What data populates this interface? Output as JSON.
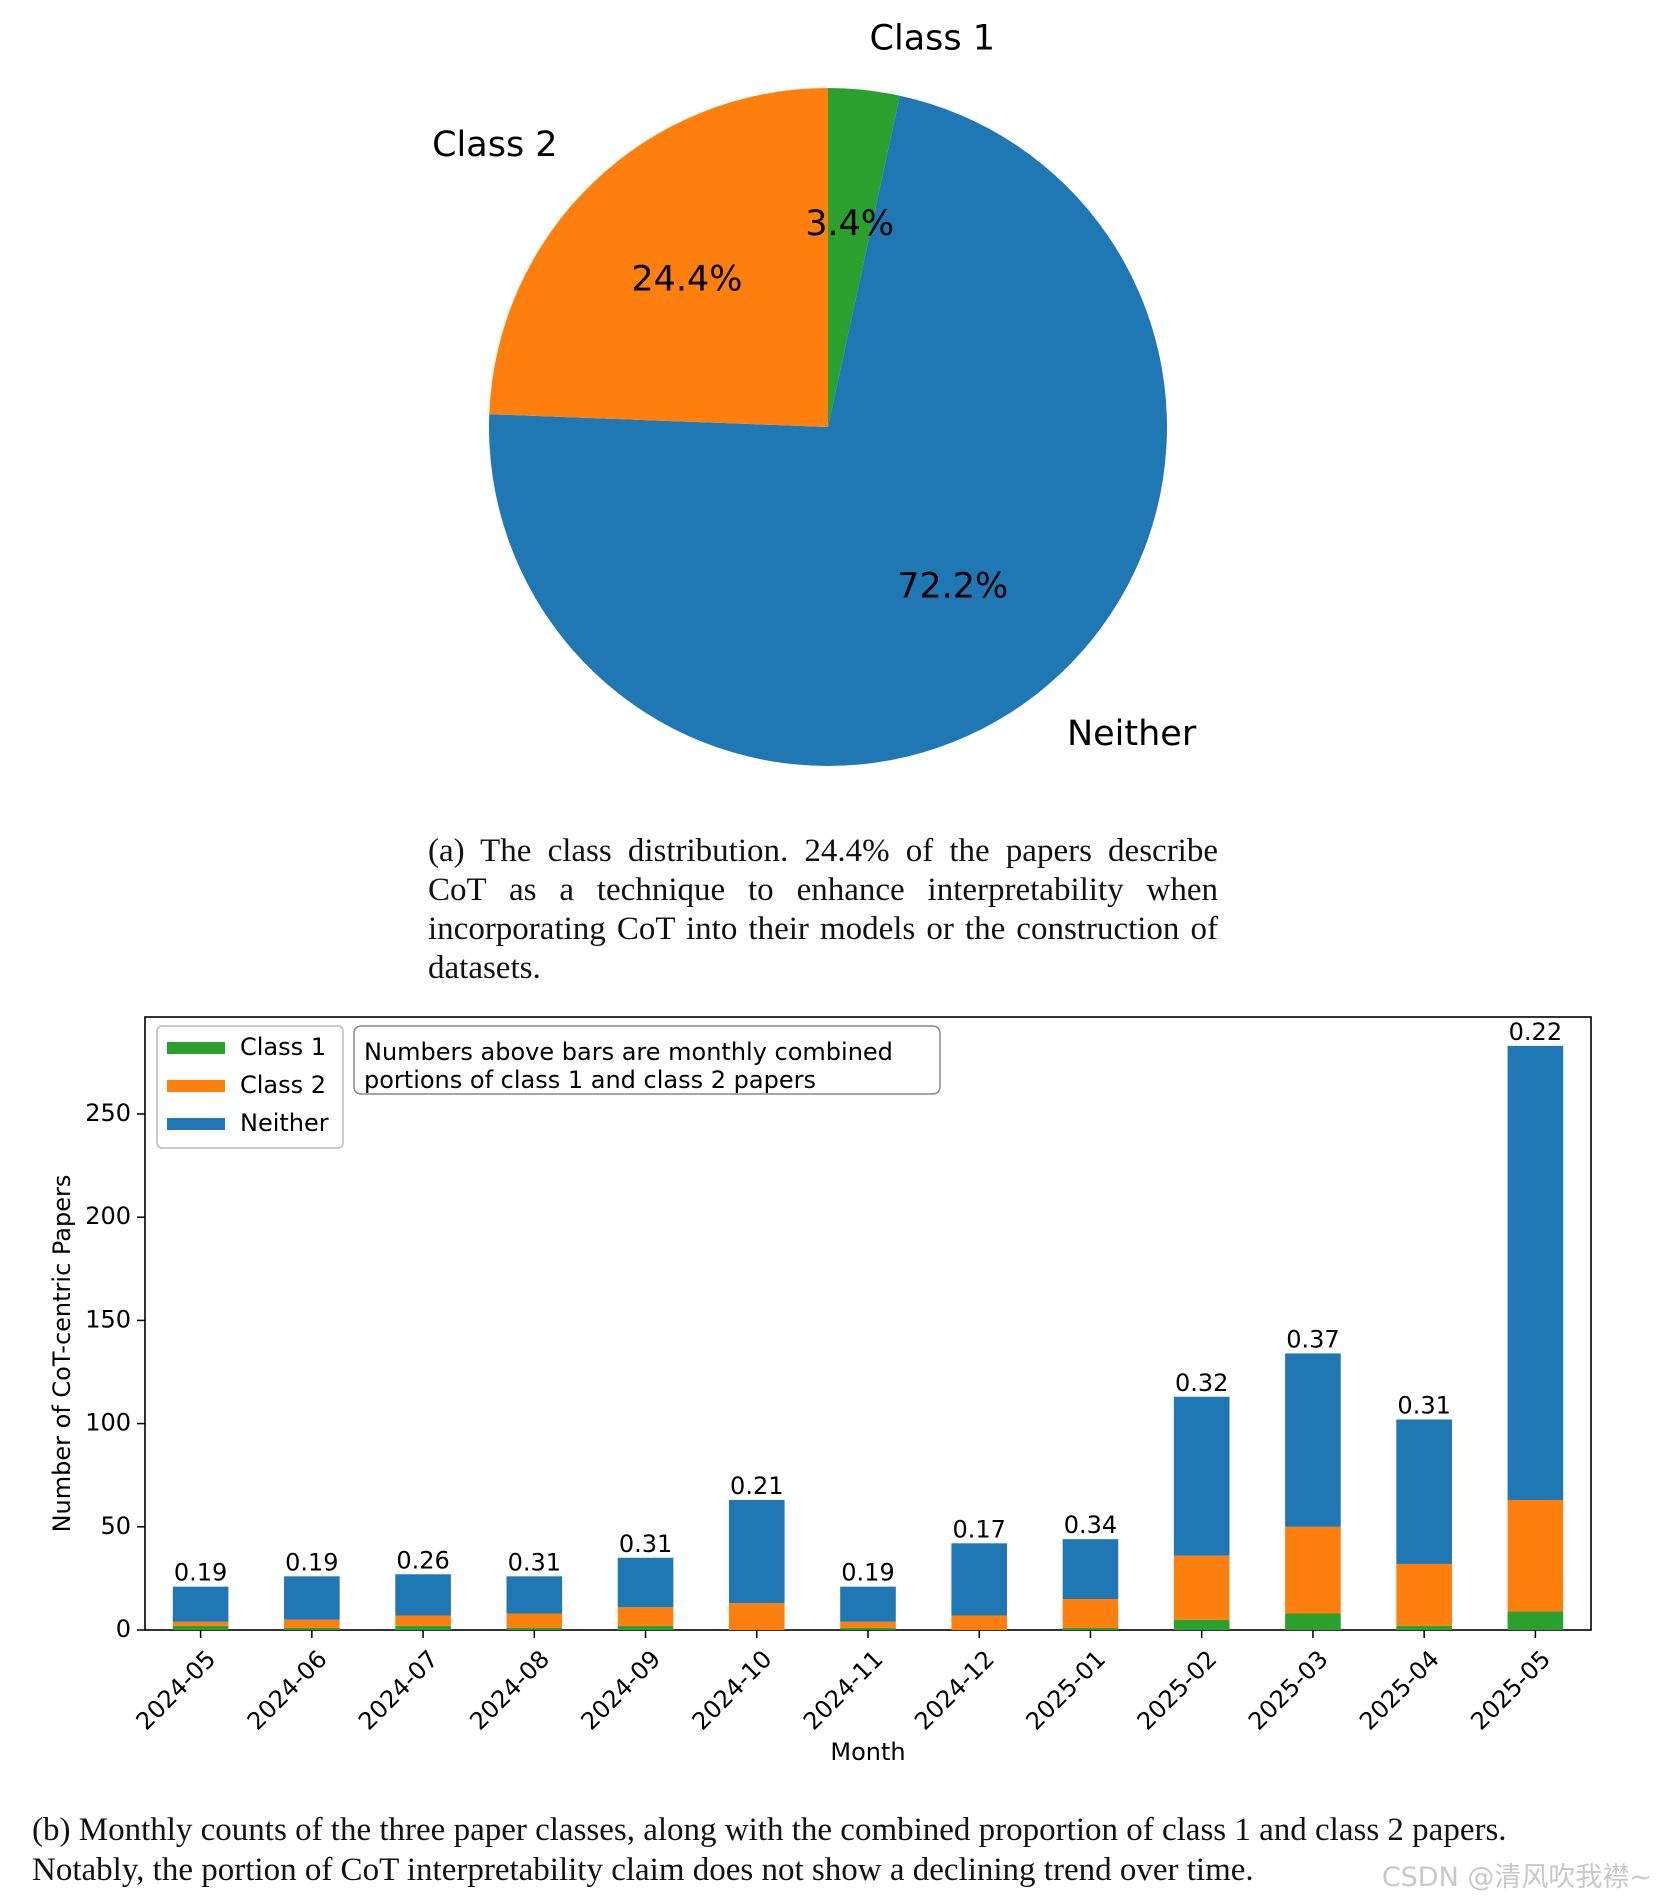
{
  "colors": {
    "class1": "#2ca02c",
    "class2": "#ff7f0e",
    "neither": "#1f77b4"
  },
  "chart_data": [
    {
      "type": "pie",
      "labels": [
        "Class 1",
        "Class 2",
        "Neither"
      ],
      "values": [
        3.4,
        24.4,
        72.2
      ],
      "pct_labels": [
        "3.4%",
        "24.4%",
        "72.2%"
      ]
    },
    {
      "type": "bar",
      "stacked": true,
      "categories": [
        "2024-05",
        "2024-06",
        "2024-07",
        "2024-08",
        "2024-09",
        "2024-10",
        "2024-11",
        "2024-12",
        "2025-01",
        "2025-02",
        "2025-03",
        "2025-04",
        "2025-05"
      ],
      "series": [
        {
          "name": "Class 1",
          "values": [
            2,
            1,
            2,
            1,
            2,
            0,
            1,
            0,
            1,
            5,
            8,
            2,
            9
          ]
        },
        {
          "name": "Class 2",
          "values": [
            2,
            4,
            5,
            7,
            9,
            13,
            3,
            7,
            14,
            31,
            42,
            30,
            54
          ]
        },
        {
          "name": "Neither",
          "values": [
            17,
            21,
            20,
            18,
            24,
            50,
            17,
            35,
            29,
            77,
            84,
            70,
            220
          ]
        }
      ],
      "bar_labels": [
        "0.19",
        "0.19",
        "0.26",
        "0.31",
        "0.31",
        "0.21",
        "0.19",
        "0.17",
        "0.34",
        "0.32",
        "0.37",
        "0.31",
        "0.22"
      ],
      "xlabel": "Month",
      "ylabel": "Number of CoT-centric Papers",
      "ylim": [
        0,
        297
      ],
      "yticks": [
        0,
        50,
        100,
        150,
        200,
        250
      ],
      "legend_position": "upper-left",
      "annotation": [
        "Numbers above bars are monthly combined",
        "portions of class 1 and class 2 papers"
      ]
    }
  ],
  "captions": {
    "a": "(a) The class distribution. 24.4% of the papers describe CoT as a technique to enhance interpretability when incorporating CoT into their models or the construction of datasets.",
    "b_line1": "(b) Monthly counts of the three paper classes, along with the combined proportion of class 1 and class 2 papers.",
    "b_line2": "Notably, the portion of CoT interpretability claim does not show a declining trend over time."
  },
  "watermark": "CSDN @清风吹我襟~"
}
